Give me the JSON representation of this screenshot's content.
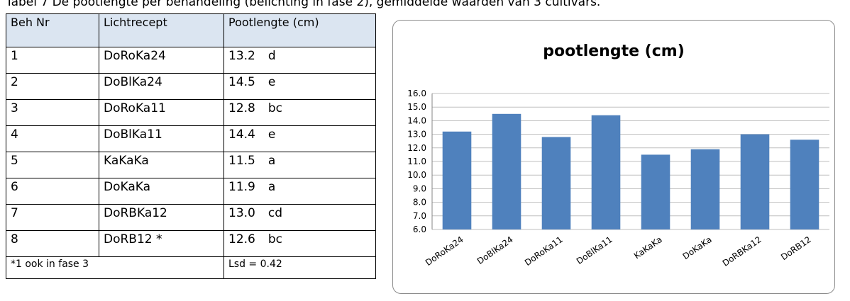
{
  "caption": "Tabel 7  De pootlengte per behandeling (belichting in fase 2), gemiddelde waarden van 3 cultivars.",
  "table": {
    "header": [
      "Beh Nr",
      "Lichtrecept",
      "Pootlengte (cm)"
    ],
    "rows": [
      [
        "1",
        "DoRoKa24",
        "13.2",
        "d"
      ],
      [
        "2",
        "DoBlKa24",
        "14.5",
        "e"
      ],
      [
        "3",
        "DoRoKa11",
        "12.8",
        "bc"
      ],
      [
        "4",
        "DoBlKa11",
        "14.4",
        "e"
      ],
      [
        "5",
        "KaKaKa",
        "11.5",
        "a"
      ],
      [
        "6",
        "DoKaKa",
        "11.9",
        "a"
      ],
      [
        "7",
        "DoRBKa12",
        "13.0",
        "cd"
      ],
      [
        "8",
        "DoRB12 *",
        "12.6",
        "bc"
      ]
    ],
    "footer": [
      "*1  ook in fase 3",
      "Lsd = 0.42"
    ]
  },
  "chart_data": {
    "type": "bar",
    "title": "pootlengte (cm)",
    "categories": [
      "DoRoKa24",
      "DoBlKa24",
      "DoRoKa11",
      "DoBlKa11",
      "KaKaKa",
      "DoKaKa",
      "DoRBKa12",
      "DoRB12"
    ],
    "values": [
      13.2,
      14.5,
      12.8,
      14.4,
      11.5,
      11.9,
      13.0,
      12.6
    ],
    "color": "#4f81bd",
    "ylim": [
      6,
      16
    ],
    "yticks": [
      {
        "value": 6,
        "label": "6.0"
      },
      {
        "value": 7,
        "label": "7.0"
      },
      {
        "value": 8,
        "label": "8.0"
      },
      {
        "value": 9,
        "label": "9.0"
      },
      {
        "value": 10,
        "label": "10.0"
      },
      {
        "value": 11,
        "label": "11.0"
      },
      {
        "value": 12,
        "label": "12.0"
      },
      {
        "value": 13,
        "label": "13.0"
      },
      {
        "value": 14,
        "label": "14.0"
      },
      {
        "value": 15,
        "label": "15.0"
      },
      {
        "value": 16,
        "label": "16.0"
      }
    ],
    "grid": true
  }
}
